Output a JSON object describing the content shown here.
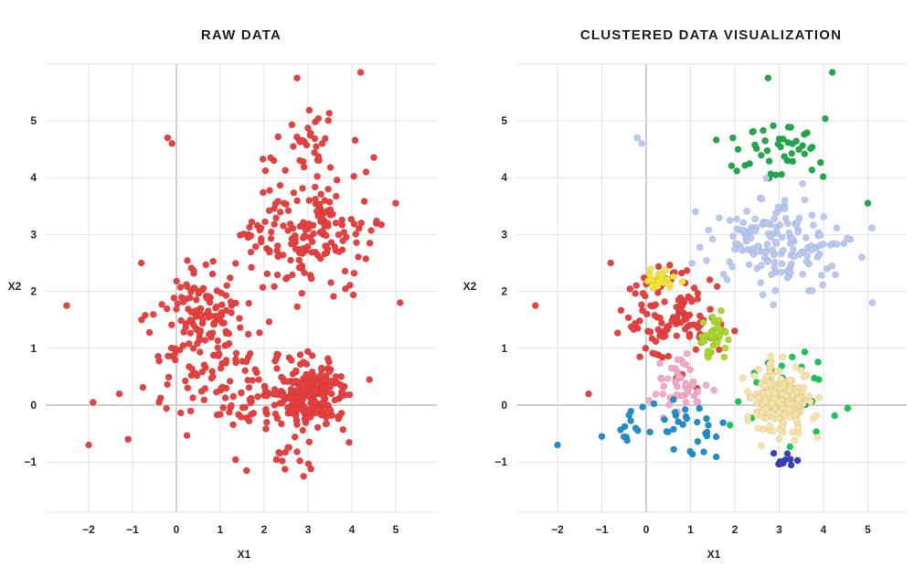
{
  "chart_data": [
    {
      "type": "scatter",
      "title": "RAW DATA",
      "xlabel": "X1",
      "ylabel": "X2",
      "xlim": [
        -2.9,
        5.6
      ],
      "ylim": [
        -1.8,
        5.9
      ],
      "x_ticks": [
        "−2",
        "−1",
        "0",
        "1",
        "2",
        "3",
        "4",
        "5"
      ],
      "y_ticks": [
        "−1",
        "0",
        "1",
        "2",
        "3",
        "4",
        "5"
      ],
      "grid": true,
      "point_color": "#e8403f",
      "series": [
        {
          "color": "#e8403f",
          "clusters": [
            {
              "center": [
                3.0,
                4.4
              ],
              "spread": [
                0.8,
                0.45
              ],
              "count": 45
            },
            {
              "center": [
                3.0,
                2.9
              ],
              "spread": [
                1.0,
                0.55
              ],
              "count": 160
            },
            {
              "center": [
                0.6,
                1.6
              ],
              "spread": [
                0.75,
                0.6
              ],
              "count": 120
            },
            {
              "center": [
                3.0,
                0.2
              ],
              "spread": [
                0.55,
                0.45
              ],
              "count": 220
            },
            {
              "center": [
                1.4,
                0.3
              ],
              "spread": [
                1.3,
                0.7
              ],
              "count": 110
            },
            {
              "center": [
                2.7,
                -0.9
              ],
              "spread": [
                0.5,
                0.15
              ],
              "count": 12
            }
          ],
          "points": [
            [
              -2.5,
              1.75
            ],
            [
              -1.9,
              0.05
            ],
            [
              -2.0,
              -0.7
            ],
            [
              -1.1,
              -0.6
            ],
            [
              -0.2,
              4.7
            ],
            [
              -0.1,
              4.6
            ],
            [
              4.2,
              5.85
            ],
            [
              2.75,
              5.75
            ],
            [
              5.1,
              1.8
            ],
            [
              5.0,
              3.55
            ],
            [
              4.4,
              0.45
            ],
            [
              1.6,
              -1.15
            ],
            [
              2.9,
              -1.25
            ],
            [
              -1.3,
              0.2
            ],
            [
              -0.8,
              2.5
            ]
          ]
        }
      ]
    },
    {
      "type": "scatter",
      "title": "CLUSTERED DATA VISUALIZATION",
      "xlabel": "X1",
      "ylabel": "X2",
      "xlim": [
        -2.9,
        5.6
      ],
      "ylim": [
        -1.8,
        5.9
      ],
      "x_ticks": [
        "−2",
        "−1",
        "0",
        "1",
        "2",
        "3",
        "4",
        "5"
      ],
      "y_ticks": [
        "−1",
        "0",
        "1",
        "2",
        "3",
        "4",
        "5"
      ],
      "grid": true,
      "series": [
        {
          "color": "#e8403f",
          "center": [
            0.6,
            1.6
          ],
          "spread": [
            0.75,
            0.6
          ],
          "count": 120,
          "points": [
            [
              -2.5,
              1.75
            ],
            [
              -1.3,
              0.2
            ],
            [
              -0.8,
              2.5
            ]
          ]
        },
        {
          "color": "#20a84a",
          "center": [
            3.0,
            4.4
          ],
          "spread": [
            0.8,
            0.45
          ],
          "count": 45,
          "points": [
            [
              4.2,
              5.85
            ],
            [
              2.75,
              5.75
            ],
            [
              5.0,
              3.55
            ]
          ]
        },
        {
          "color": "#b9c8f3",
          "center": [
            3.0,
            2.9
          ],
          "spread": [
            1.0,
            0.55
          ],
          "count": 160,
          "points": [
            [
              5.1,
              1.8
            ],
            [
              -0.2,
              4.7
            ],
            [
              -0.1,
              4.6
            ]
          ]
        },
        {
          "color": "#f4e63a",
          "center": [
            0.3,
            2.2
          ],
          "spread": [
            0.3,
            0.12
          ],
          "count": 25,
          "points": []
        },
        {
          "color": "#a8d82a",
          "center": [
            1.6,
            1.2
          ],
          "spread": [
            0.25,
            0.3
          ],
          "count": 40,
          "points": []
        },
        {
          "color": "#f5a8c8",
          "center": [
            0.8,
            0.3
          ],
          "spread": [
            0.4,
            0.35
          ],
          "count": 45,
          "points": []
        },
        {
          "color": "#1e8fca",
          "center": [
            0.6,
            -0.4
          ],
          "spread": [
            1.0,
            0.35
          ],
          "count": 40,
          "points": [
            [
              -2.0,
              -0.7
            ],
            [
              -1.0,
              -0.55
            ]
          ]
        },
        {
          "color": "#14c95a",
          "center": [
            3.3,
            0.3
          ],
          "spread": [
            0.9,
            0.55
          ],
          "count": 30,
          "points": []
        },
        {
          "color": "#f8e3a6",
          "center": [
            3.0,
            0.1
          ],
          "spread": [
            0.45,
            0.4
          ],
          "count": 200,
          "points": []
        },
        {
          "color": "#3b3fb8",
          "center": [
            3.2,
            -0.95
          ],
          "spread": [
            0.3,
            0.12
          ],
          "count": 10,
          "points": []
        }
      ]
    }
  ]
}
